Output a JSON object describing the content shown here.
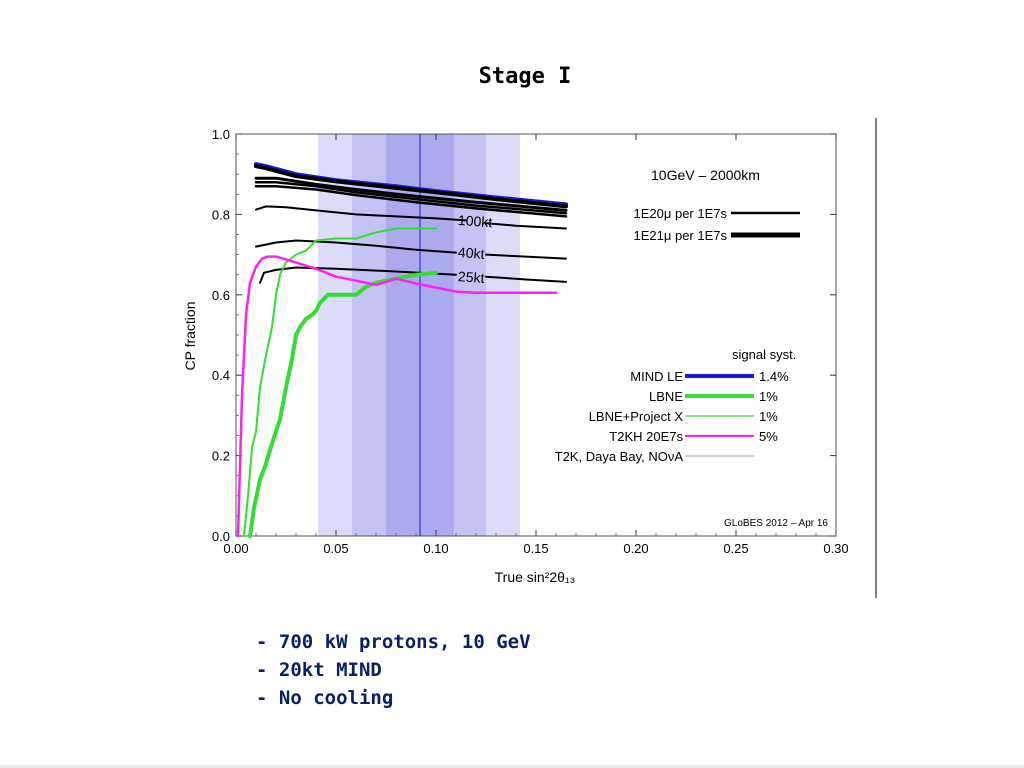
{
  "slide": {
    "title": "Stage I",
    "bullets": [
      "- 700 kW protons, 10 GeV",
      "- 20kt MIND",
      "- No cooling"
    ]
  },
  "chart_data": {
    "type": "line",
    "title": "",
    "xlabel": "True sin²2θ₁₃",
    "ylabel": "CP fraction",
    "xlim": [
      0,
      0.3
    ],
    "ylim": [
      0,
      1.0
    ],
    "xticks": [
      0.0,
      0.05,
      0.1,
      0.15,
      0.2,
      0.25,
      0.3
    ],
    "yticks": [
      0.0,
      0.2,
      0.4,
      0.6,
      0.8,
      1.0
    ],
    "xtick_labels": [
      "0.00",
      "0.05",
      "0.10",
      "0.15",
      "0.20",
      "0.25",
      "0.30"
    ],
    "ytick_labels": [
      "0.0",
      "0.2",
      "0.4",
      "0.6",
      "0.8",
      "1.0"
    ],
    "grid": false,
    "bands": [
      {
        "x0": 0.041,
        "x1": 0.142,
        "color": "#dcdcf9"
      },
      {
        "x0": 0.058,
        "x1": 0.125,
        "color": "#c4c4f4"
      },
      {
        "x0": 0.075,
        "x1": 0.109,
        "color": "#aaaaee"
      }
    ],
    "vline": {
      "x": 0.092,
      "color": "#3333cc"
    },
    "top_label": "10GeV – 2000km",
    "flux_legend": [
      {
        "label": "1E20μ per 1E7s",
        "width": 2.5
      },
      {
        "label": "1E21μ per 1E7s",
        "width": 5
      }
    ],
    "curve_labels": [
      {
        "text": "100kt",
        "x": 0.115,
        "y": 0.785
      },
      {
        "text": "40kt",
        "x": 0.115,
        "y": 0.705
      },
      {
        "text": "25kt",
        "x": 0.115,
        "y": 0.645
      }
    ],
    "legend_header": "signal syst.",
    "legend": [
      {
        "name": "MIND LE",
        "syst": "1.4%",
        "color": "#1a1acc",
        "width": 4
      },
      {
        "name": "LBNE",
        "syst": "1%",
        "color": "#33dd33",
        "width": 4
      },
      {
        "name": "LBNE+Project X",
        "syst": "1%",
        "color": "#33dd33",
        "width": 1.2
      },
      {
        "name": "T2KH 20E7s",
        "syst": "5%",
        "color": "#ff22ee",
        "width": 2
      },
      {
        "name": "T2K, Daya Bay, NOνA",
        "syst": "",
        "color": "#aaaaaa",
        "width": 1
      }
    ],
    "watermark": "GLoBES 2012 – Apr 16",
    "series": [
      {
        "name": "MIND LE",
        "color": "#1a1acc",
        "width": 4,
        "x": [
          0.01,
          0.015,
          0.03,
          0.05,
          0.08,
          0.1,
          0.13,
          0.165
        ],
        "y": [
          0.925,
          0.92,
          0.9,
          0.885,
          0.87,
          0.858,
          0.842,
          0.825
        ]
      },
      {
        "color": "#000000",
        "width": 4,
        "x": [
          0.01,
          0.015,
          0.03,
          0.05,
          0.08,
          0.1,
          0.13,
          0.165
        ],
        "y": [
          0.92,
          0.915,
          0.895,
          0.882,
          0.866,
          0.855,
          0.838,
          0.82
        ]
      },
      {
        "color": "#000000",
        "width": 3,
        "x": [
          0.01,
          0.02,
          0.04,
          0.06,
          0.09,
          0.12,
          0.165
        ],
        "y": [
          0.89,
          0.89,
          0.875,
          0.862,
          0.845,
          0.83,
          0.81
        ]
      },
      {
        "color": "#000000",
        "width": 2.5,
        "x": [
          0.01,
          0.02,
          0.04,
          0.06,
          0.09,
          0.12,
          0.165
        ],
        "y": [
          0.88,
          0.88,
          0.87,
          0.855,
          0.838,
          0.822,
          0.803
        ]
      },
      {
        "color": "#000000",
        "width": 2.5,
        "x": [
          0.01,
          0.02,
          0.04,
          0.06,
          0.09,
          0.12,
          0.165
        ],
        "y": [
          0.87,
          0.87,
          0.862,
          0.848,
          0.83,
          0.815,
          0.795
        ]
      },
      {
        "color": "#000000",
        "width": 2,
        "x": [
          0.01,
          0.015,
          0.025,
          0.04,
          0.06,
          0.08,
          0.1,
          0.115
        ],
        "y": [
          0.812,
          0.82,
          0.818,
          0.81,
          0.8,
          0.795,
          0.79,
          0.785
        ]
      },
      {
        "color": "#000000",
        "width": 2,
        "x": [
          0.125,
          0.14,
          0.165
        ],
        "y": [
          0.778,
          0.772,
          0.765
        ]
      },
      {
        "color": "#000000",
        "width": 2,
        "x": [
          0.01,
          0.02,
          0.03,
          0.05,
          0.07,
          0.09,
          0.11
        ],
        "y": [
          0.72,
          0.73,
          0.735,
          0.73,
          0.722,
          0.712,
          0.705
        ]
      },
      {
        "color": "#000000",
        "width": 2,
        "x": [
          0.125,
          0.145,
          0.165
        ],
        "y": [
          0.7,
          0.695,
          0.69
        ]
      },
      {
        "color": "#000000",
        "width": 2,
        "x": [
          0.012,
          0.014,
          0.02,
          0.03,
          0.05,
          0.08,
          0.11
        ],
        "y": [
          0.63,
          0.655,
          0.662,
          0.668,
          0.665,
          0.658,
          0.65
        ]
      },
      {
        "color": "#000000",
        "width": 2,
        "x": [
          0.125,
          0.145,
          0.165
        ],
        "y": [
          0.645,
          0.638,
          0.632
        ]
      },
      {
        "name": "LBNE",
        "color": "#33dd33",
        "width": 4,
        "x": [
          0.007,
          0.009,
          0.012,
          0.015,
          0.018,
          0.022,
          0.025,
          0.028,
          0.03,
          0.032,
          0.035,
          0.038,
          0.04,
          0.042,
          0.044,
          0.046,
          0.05,
          0.055,
          0.06,
          0.065,
          0.07,
          0.08,
          0.09,
          0.1
        ],
        "y": [
          0.0,
          0.07,
          0.14,
          0.18,
          0.23,
          0.29,
          0.37,
          0.44,
          0.5,
          0.52,
          0.54,
          0.55,
          0.56,
          0.58,
          0.59,
          0.6,
          0.6,
          0.6,
          0.6,
          0.62,
          0.63,
          0.64,
          0.65,
          0.655
        ]
      },
      {
        "name": "LBNE+Project X",
        "color": "#33dd33",
        "width": 2,
        "x": [
          0.004,
          0.006,
          0.008,
          0.01,
          0.012,
          0.015,
          0.018,
          0.02,
          0.022,
          0.025,
          0.03,
          0.035,
          0.04,
          0.05,
          0.06,
          0.07,
          0.08,
          0.09,
          0.1
        ],
        "y": [
          0.0,
          0.1,
          0.22,
          0.26,
          0.37,
          0.45,
          0.52,
          0.6,
          0.65,
          0.68,
          0.7,
          0.71,
          0.735,
          0.74,
          0.74,
          0.755,
          0.765,
          0.765,
          0.765
        ]
      },
      {
        "name": "T2KH 20E7s",
        "color": "#ff22ee",
        "width": 2.5,
        "x": [
          0.001,
          0.003,
          0.005,
          0.007,
          0.01,
          0.013,
          0.016,
          0.02,
          0.025,
          0.03,
          0.04,
          0.05,
          0.06,
          0.07,
          0.075,
          0.08,
          0.09,
          0.1,
          0.11,
          0.12,
          0.13,
          0.14,
          0.15,
          0.16
        ],
        "y": [
          0.0,
          0.35,
          0.55,
          0.63,
          0.67,
          0.69,
          0.695,
          0.695,
          0.688,
          0.68,
          0.665,
          0.645,
          0.635,
          0.625,
          0.632,
          0.64,
          0.628,
          0.618,
          0.608,
          0.605,
          0.605,
          0.605,
          0.605,
          0.605
        ]
      }
    ]
  }
}
